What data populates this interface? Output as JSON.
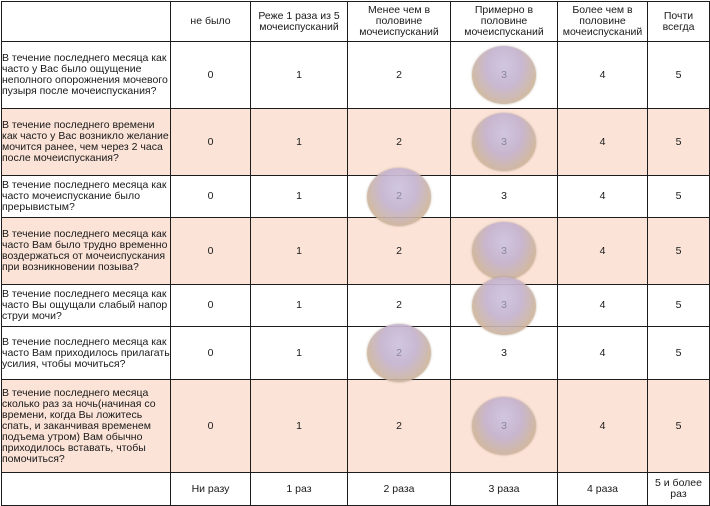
{
  "columns": [
    "не было",
    "Реже 1 раза из 5 мочеиспусканий",
    "Менее чем в половине мочеиспусканий",
    "Примерно в половине мочеиспусканий",
    "Более чем в половине мочеиспусканий",
    "Почти всегда"
  ],
  "rows": [
    {
      "question": "В течение последнего месяца как часто у Вас было ощущение неполного опорожнения мочевого пузыря после мочеиспускания?",
      "values": [
        "0",
        "1",
        "2",
        "3",
        "4",
        "5"
      ],
      "selected": "3",
      "shaded": false
    },
    {
      "question": "В течение последнего времени как часто у Вас возникло желание мочится ранее, чем через 2 часа после мочеиспускания?",
      "values": [
        "0",
        "1",
        "2",
        "3",
        "4",
        "5"
      ],
      "selected": "3",
      "shaded": true
    },
    {
      "question": "В течение последнего месяца как часто мочеиспускание было прерывистым?",
      "values": [
        "0",
        "1",
        "2",
        "3",
        "4",
        "5"
      ],
      "selected": "2",
      "shaded": false
    },
    {
      "question": "В течение последнего месяца как часто Вам было трудно временно воздержаться от мочеиспускания при возникновении позыва?",
      "values": [
        "0",
        "1",
        "2",
        "3",
        "4",
        "5"
      ],
      "selected": "3",
      "shaded": true
    },
    {
      "question": "В течение последнего месяца как часто Вы ощущали слабый напор струи мочи?",
      "values": [
        "0",
        "1",
        "2",
        "3",
        "4",
        "5"
      ],
      "selected": "3",
      "shaded": false
    },
    {
      "question": "В течение последнего месяца как часто Вам приходилось прилагать  усилия, чтобы мочиться?",
      "values": [
        "0",
        "1",
        "2",
        "3",
        "4",
        "5"
      ],
      "selected": "2",
      "shaded": false
    },
    {
      "question": "В течение последнего месяца сколько раз за ночь(начиная со времени, когда Вы ложитесь спать, и заканчивая временем подъема утром) Вам обычно приходилось вставать, чтобы помочиться?",
      "values": [
        "0",
        "1",
        "2",
        "3",
        "4",
        "5"
      ],
      "selected": "3",
      "shaded": true
    }
  ],
  "footer": [
    "Ни разу",
    "1 раз",
    "2 раза",
    "3 раза",
    "4 раза",
    "5 и более раз"
  ]
}
